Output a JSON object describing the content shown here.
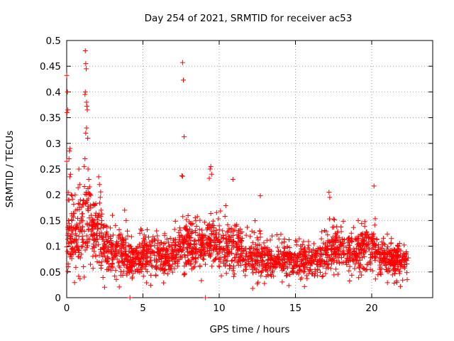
{
  "chart_data": {
    "type": "scatter",
    "title": "Day 254 of 2021, SRMTID for receiver ac53",
    "xlabel": "GPS time / hours",
    "ylabel": "SRMTID / TECUs",
    "xlim": [
      0,
      24
    ],
    "ylim": [
      0,
      0.5
    ],
    "x_ticks": [
      0,
      5,
      10,
      15,
      20
    ],
    "y_ticks": [
      0,
      0.05,
      0.1,
      0.15,
      0.2,
      0.25,
      0.3,
      0.35,
      0.4,
      0.45,
      0.5
    ],
    "x_tick_labels": [
      "0",
      "5",
      "10",
      "15",
      "20"
    ],
    "y_tick_labels": [
      "0",
      "0.05",
      "0.1",
      "0.15",
      "0.2",
      "0.25",
      "0.3",
      "0.35",
      "0.4",
      "0.45",
      "0.5"
    ],
    "grid": true,
    "marker": "+",
    "color": "#ff0000",
    "data_range_hours": [
      0,
      22.4
    ],
    "series": [
      {
        "name": "SRMTID",
        "points": [
          [
            0.0,
            0.432
          ],
          [
            0.05,
            0.4
          ],
          [
            0.02,
            0.36
          ],
          [
            0.08,
            0.365
          ],
          [
            0.0,
            0.265
          ],
          [
            0.1,
            0.19
          ],
          [
            0.12,
            0.15
          ],
          [
            0.05,
            0.09
          ],
          [
            0.1,
            0.06
          ],
          [
            0.2,
            0.235
          ],
          [
            0.25,
            0.24
          ],
          [
            0.15,
            0.27
          ],
          [
            0.18,
            0.285
          ],
          [
            0.22,
            0.29
          ],
          [
            0.3,
            0.2
          ],
          [
            0.35,
            0.15
          ],
          [
            0.4,
            0.13
          ],
          [
            0.45,
            0.11
          ],
          [
            0.5,
            0.09
          ],
          [
            0.55,
            0.2
          ],
          [
            0.6,
            0.17
          ],
          [
            0.65,
            0.14
          ],
          [
            0.7,
            0.1
          ],
          [
            0.75,
            0.08
          ],
          [
            0.8,
            0.25
          ],
          [
            0.85,
            0.22
          ],
          [
            0.9,
            0.19
          ],
          [
            0.95,
            0.15
          ],
          [
            1.0,
            0.13
          ],
          [
            1.05,
            0.1
          ],
          [
            1.1,
            0.06
          ],
          [
            1.15,
            0.04
          ],
          [
            1.22,
            0.48
          ],
          [
            1.25,
            0.455
          ],
          [
            1.28,
            0.445
          ],
          [
            1.22,
            0.4
          ],
          [
            1.2,
            0.395
          ],
          [
            1.3,
            0.38
          ],
          [
            1.32,
            0.372
          ],
          [
            1.35,
            0.365
          ],
          [
            1.3,
            0.33
          ],
          [
            1.25,
            0.32
          ],
          [
            1.38,
            0.31
          ],
          [
            1.2,
            0.27
          ],
          [
            1.15,
            0.255
          ],
          [
            1.4,
            0.25
          ],
          [
            1.45,
            0.23
          ],
          [
            1.5,
            0.2
          ],
          [
            1.55,
            0.18
          ],
          [
            1.6,
            0.16
          ],
          [
            1.65,
            0.14
          ],
          [
            1.7,
            0.12
          ],
          [
            1.75,
            0.1
          ],
          [
            1.8,
            0.09
          ],
          [
            1.9,
            0.08
          ],
          [
            2.0,
            0.07
          ],
          [
            2.1,
            0.235
          ],
          [
            2.15,
            0.22
          ],
          [
            2.2,
            0.195
          ],
          [
            2.25,
            0.17
          ],
          [
            2.3,
            0.15
          ],
          [
            2.4,
            0.12
          ],
          [
            2.5,
            0.1
          ],
          [
            2.6,
            0.09
          ],
          [
            2.7,
            0.075
          ],
          [
            2.8,
            0.06
          ],
          [
            3.0,
            0.16
          ],
          [
            3.2,
            0.14
          ],
          [
            3.4,
            0.12
          ],
          [
            3.6,
            0.11
          ],
          [
            3.8,
            0.17
          ],
          [
            3.9,
            0.15
          ],
          [
            4.0,
            0.12
          ],
          [
            4.1,
            0.09
          ],
          [
            4.2,
            0.06
          ],
          [
            4.3,
            0.04
          ],
          [
            7.6,
            0.457
          ],
          [
            7.65,
            0.423
          ],
          [
            7.7,
            0.313
          ],
          [
            7.55,
            0.237
          ],
          [
            7.6,
            0.236
          ],
          [
            9.45,
            0.255
          ],
          [
            9.4,
            0.25
          ],
          [
            9.5,
            0.24
          ],
          [
            9.35,
            0.232
          ],
          [
            10.9,
            0.23
          ],
          [
            12.7,
            0.198
          ],
          [
            17.2,
            0.205
          ],
          [
            17.25,
            0.195
          ],
          [
            20.15,
            0.217
          ]
        ]
      }
    ],
    "dense_band": [
      [
        0.5,
        0.04,
        0.2
      ],
      [
        1.0,
        0.03,
        0.25
      ],
      [
        1.5,
        0.04,
        0.24
      ],
      [
        2.0,
        0.04,
        0.22
      ],
      [
        2.5,
        0.03,
        0.17
      ],
      [
        3.0,
        0.03,
        0.14
      ],
      [
        3.5,
        0.03,
        0.14
      ],
      [
        4.0,
        0.02,
        0.13
      ],
      [
        4.5,
        0.03,
        0.12
      ],
      [
        5.0,
        0.03,
        0.13
      ],
      [
        5.5,
        0.03,
        0.13
      ],
      [
        6.0,
        0.03,
        0.13
      ],
      [
        6.5,
        0.03,
        0.12
      ],
      [
        7.0,
        0.04,
        0.13
      ],
      [
        7.5,
        0.04,
        0.17
      ],
      [
        8.0,
        0.04,
        0.16
      ],
      [
        8.5,
        0.04,
        0.16
      ],
      [
        9.0,
        0.04,
        0.16
      ],
      [
        9.5,
        0.05,
        0.17
      ],
      [
        10.0,
        0.03,
        0.16
      ],
      [
        10.5,
        0.03,
        0.17
      ],
      [
        11.0,
        0.03,
        0.16
      ],
      [
        11.5,
        0.04,
        0.14
      ],
      [
        12.0,
        0.03,
        0.14
      ],
      [
        12.5,
        0.02,
        0.14
      ],
      [
        13.0,
        0.03,
        0.12
      ],
      [
        13.5,
        0.03,
        0.12
      ],
      [
        14.0,
        0.03,
        0.12
      ],
      [
        14.5,
        0.03,
        0.12
      ],
      [
        15.0,
        0.03,
        0.11
      ],
      [
        15.5,
        0.03,
        0.12
      ],
      [
        16.0,
        0.03,
        0.11
      ],
      [
        16.5,
        0.03,
        0.12
      ],
      [
        17.0,
        0.04,
        0.14
      ],
      [
        17.5,
        0.05,
        0.15
      ],
      [
        18.0,
        0.05,
        0.15
      ],
      [
        18.5,
        0.04,
        0.14
      ],
      [
        19.0,
        0.04,
        0.14
      ],
      [
        19.5,
        0.05,
        0.15
      ],
      [
        20.0,
        0.05,
        0.15
      ],
      [
        20.5,
        0.04,
        0.14
      ],
      [
        21.0,
        0.03,
        0.12
      ],
      [
        21.5,
        0.03,
        0.12
      ],
      [
        22.0,
        0.03,
        0.11
      ]
    ]
  }
}
